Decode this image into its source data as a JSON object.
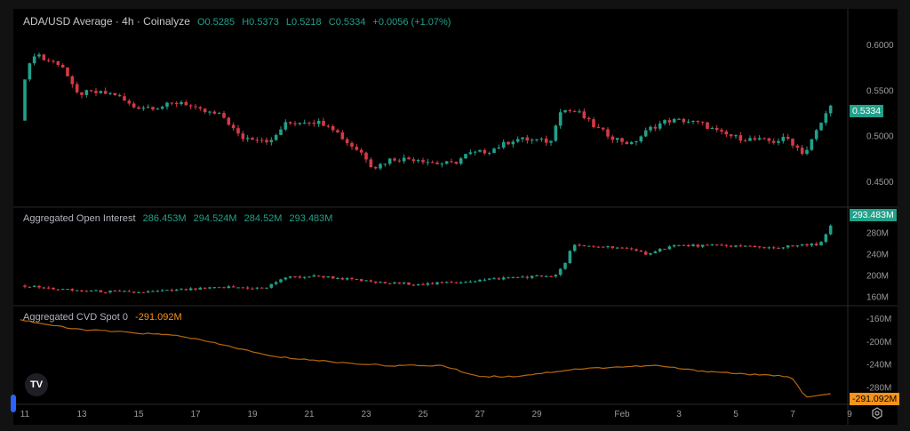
{
  "header": {
    "title": "ADA/USD Average · 4h · Coinalyze",
    "ohlc": {
      "o_label": "O",
      "o": "0.5285",
      "h_label": "H",
      "h": "0.5373",
      "l_label": "L",
      "l": "0.5218",
      "c_label": "C",
      "c": "0.5334",
      "change": "+0.0056 (+1.07%)"
    }
  },
  "oi_legend": {
    "title": "Aggregated Open Interest",
    "values": [
      "286.453M",
      "294.524M",
      "284.52M",
      "293.483M"
    ]
  },
  "cvd_legend": {
    "title": "Aggregated CVD Spot 0",
    "value": "-291.092M"
  },
  "badges": {
    "price": "0.5334",
    "oi": "293.483M",
    "cvd": "-291.092M"
  },
  "logo": "TV",
  "icons": {
    "settings": "gear-icon",
    "logo": "tradingview-logo",
    "handle": "pane-handle"
  },
  "colors": {
    "up": "#22a08a",
    "down": "#d43a44",
    "cvd": "#b8670e",
    "cvd_badge": "#f7931a",
    "background": "#000000"
  },
  "chart_data": [
    {
      "type": "candlestick",
      "name": "ADA/USD Average · 4h",
      "interval": "4h",
      "yticks": [
        "0.6000",
        "0.5500",
        "0.5000",
        "0.4500"
      ],
      "ylim": [
        0.43,
        0.62
      ],
      "close_path": [
        [
          "01-10 20:00",
          0.517
        ],
        [
          "01-11 00:00",
          0.565
        ],
        [
          "01-11 09:00",
          0.593
        ],
        [
          "01-11 16:00",
          0.584
        ],
        [
          "01-12 07:00",
          0.579
        ],
        [
          "01-12 19:00",
          0.546
        ],
        [
          "01-13 06:00",
          0.548
        ],
        [
          "01-14 04:00",
          0.546
        ],
        [
          "01-14 19:00",
          0.532
        ],
        [
          "01-15 18:00",
          0.532
        ],
        [
          "01-16 13:00",
          0.538
        ],
        [
          "01-17 00:00",
          0.529
        ],
        [
          "01-17 23:00",
          0.522
        ],
        [
          "01-18 14:00",
          0.498
        ],
        [
          "01-19 05:00",
          0.498
        ],
        [
          "01-19 16:00",
          0.494
        ],
        [
          "01-20 03:00",
          0.513
        ],
        [
          "01-20 22:00",
          0.517
        ],
        [
          "01-21 17:00",
          0.513
        ],
        [
          "01-22 07:00",
          0.494
        ],
        [
          "01-22 22:00",
          0.48
        ],
        [
          "01-23 06:00",
          0.465
        ],
        [
          "01-23 21:00",
          0.475
        ],
        [
          "01-24 20:00",
          0.475
        ],
        [
          "01-25 11:00",
          0.47
        ],
        [
          "01-26 02:00",
          0.47
        ],
        [
          "01-26 13:00",
          0.48
        ],
        [
          "01-27 08:00",
          0.484
        ],
        [
          "01-28 06:00",
          0.497
        ],
        [
          "01-29 12:00",
          0.494
        ],
        [
          "01-29 19:00",
          0.529
        ],
        [
          "01-30 10:00",
          0.527
        ],
        [
          "01-31 01:00",
          0.51
        ],
        [
          "01-31 17:00",
          0.498
        ],
        [
          "02-01 08:00",
          0.491
        ],
        [
          "02-01 23:00",
          0.508
        ],
        [
          "02-02 14:00",
          0.517
        ],
        [
          "02-03 05:00",
          0.517
        ],
        [
          "02-03 20:00",
          0.513
        ],
        [
          "02-04 11:00",
          0.503
        ],
        [
          "02-05 02:00",
          0.498
        ],
        [
          "02-06 08:00",
          0.494
        ],
        [
          "02-06 19:00",
          0.498
        ],
        [
          "02-07 10:00",
          0.48
        ],
        [
          "02-07 17:00",
          0.498
        ],
        [
          "02-08 01:00",
          0.517
        ],
        [
          "02-08 08:00",
          0.5334
        ]
      ],
      "last": 0.5334
    },
    {
      "type": "candlestick",
      "name": "Aggregated Open Interest",
      "yticks": [
        "280M",
        "240M",
        "200M",
        "160M"
      ],
      "ylim": [
        150,
        300
      ],
      "close_path": [
        [
          "01-10 20:00",
          181
        ],
        [
          "01-12 16:00",
          172
        ],
        [
          "01-14 23:00",
          168
        ],
        [
          "01-18 04:00",
          178
        ],
        [
          "01-19 11:00",
          176
        ],
        [
          "01-20 02:00",
          196
        ],
        [
          "01-21 08:00",
          199
        ],
        [
          "01-23 13:00",
          186
        ],
        [
          "01-25 04:00",
          184
        ],
        [
          "01-26 18:00",
          190
        ],
        [
          "01-28 01:00",
          196
        ],
        [
          "01-29 16:00",
          200
        ],
        [
          "01-29 23:00",
          219
        ],
        [
          "01-30 06:00",
          256
        ],
        [
          "01-31 21:00",
          253
        ],
        [
          "02-01 20:00",
          241
        ],
        [
          "02-02 19:00",
          256
        ],
        [
          "02-04 18:00",
          256
        ],
        [
          "02-06 08:00",
          252
        ],
        [
          "02-07 22:00",
          259
        ],
        [
          "02-08 02:00",
          268
        ],
        [
          "02-08 08:00",
          293.483
        ]
      ],
      "last": 293.483
    },
    {
      "type": "line",
      "name": "Aggregated CVD Spot",
      "yticks": [
        "-160M",
        "-200M",
        "-240M",
        "-280M"
      ],
      "ylim": [
        -305,
        -150
      ],
      "path": [
        [
          "01-10 20:00",
          -162
        ],
        [
          "01-12 16:00",
          -178
        ],
        [
          "01-16 11:00",
          -190
        ],
        [
          "01-18 08:00",
          -210
        ],
        [
          "01-19 16:00",
          -226
        ],
        [
          "01-22 04:00",
          -237
        ],
        [
          "01-23 19:00",
          -242
        ],
        [
          "01-25 16:00",
          -242
        ],
        [
          "01-26 23:00",
          -261
        ],
        [
          "01-28 05:00",
          -261
        ],
        [
          "01-30 10:00",
          -248
        ],
        [
          "01-31 16:00",
          -245
        ],
        [
          "02-02 05:00",
          -242
        ],
        [
          "02-03 11:00",
          -250
        ],
        [
          "02-05 16:00",
          -258
        ],
        [
          "02-06 23:00",
          -261
        ],
        [
          "02-07 11:00",
          -298
        ],
        [
          "02-08 08:00",
          -291.092
        ]
      ],
      "last": -291.092
    }
  ],
  "time_axis": {
    "ticks": [
      [
        "11",
        "01-11"
      ],
      [
        "13",
        "01-13"
      ],
      [
        "15",
        "01-15"
      ],
      [
        "17",
        "01-17"
      ],
      [
        "19",
        "01-19"
      ],
      [
        "21",
        "01-21"
      ],
      [
        "23",
        "01-23"
      ],
      [
        "25",
        "01-25"
      ],
      [
        "27",
        "01-27"
      ],
      [
        "29",
        "01-29"
      ],
      [
        "Feb",
        "02-01"
      ],
      [
        "3",
        "02-03"
      ],
      [
        "5",
        "02-05"
      ],
      [
        "7",
        "02-07"
      ],
      [
        "9",
        "02-09"
      ]
    ]
  }
}
